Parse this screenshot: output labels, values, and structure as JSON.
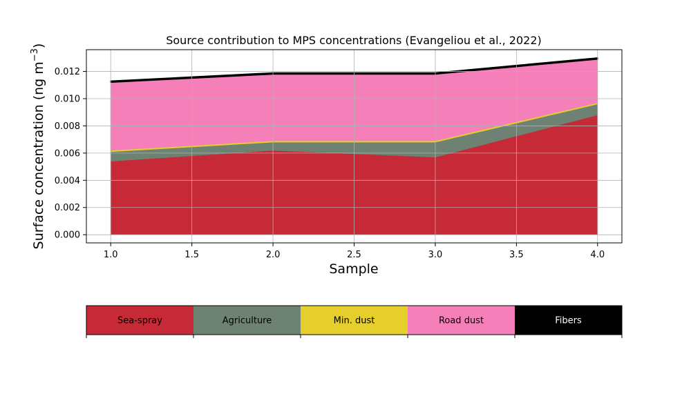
{
  "chart_data": {
    "type": "area",
    "title": "Source contribution to MPS concentrations (Evangeliou et al., 2022)",
    "xlabel": "Sample",
    "ylabel": "Surface concentration (ng m",
    "ylabel_sup": "−3",
    "ylabel_end": ")",
    "xlim": [
      0.85,
      4.15
    ],
    "ylim": [
      -0.0006,
      0.0136
    ],
    "x": [
      1.0,
      2.0,
      3.0,
      4.0
    ],
    "x_ticks": [
      "1.0",
      "1.5",
      "2.0",
      "2.5",
      "3.0",
      "3.5",
      "4.0"
    ],
    "y_ticks": [
      "0.000",
      "0.002",
      "0.004",
      "0.006",
      "0.008",
      "0.010",
      "0.012"
    ],
    "grid": true,
    "stacked": true,
    "series": [
      {
        "name": "Sea-spray",
        "color": "#c62a36",
        "values": [
          0.0054,
          0.0062,
          0.0057,
          0.0088
        ]
      },
      {
        "name": "Agriculture",
        "color": "#6e8274",
        "values": [
          0.0007,
          0.0006,
          0.0011,
          0.0008
        ]
      },
      {
        "name": "Min. dust",
        "color": "#e6cf2c",
        "values": [
          0.0001,
          0.0001,
          0.0001,
          0.0001
        ]
      },
      {
        "name": "Road dust",
        "color": "#f580b9",
        "values": [
          0.005,
          0.0049,
          0.0049,
          0.0032
        ]
      },
      {
        "name": "Fibers",
        "color": "#000000",
        "values": [
          0.0001,
          0.0001,
          0.0001,
          0.0001
        ]
      }
    ],
    "legend_placement": "bottom"
  }
}
